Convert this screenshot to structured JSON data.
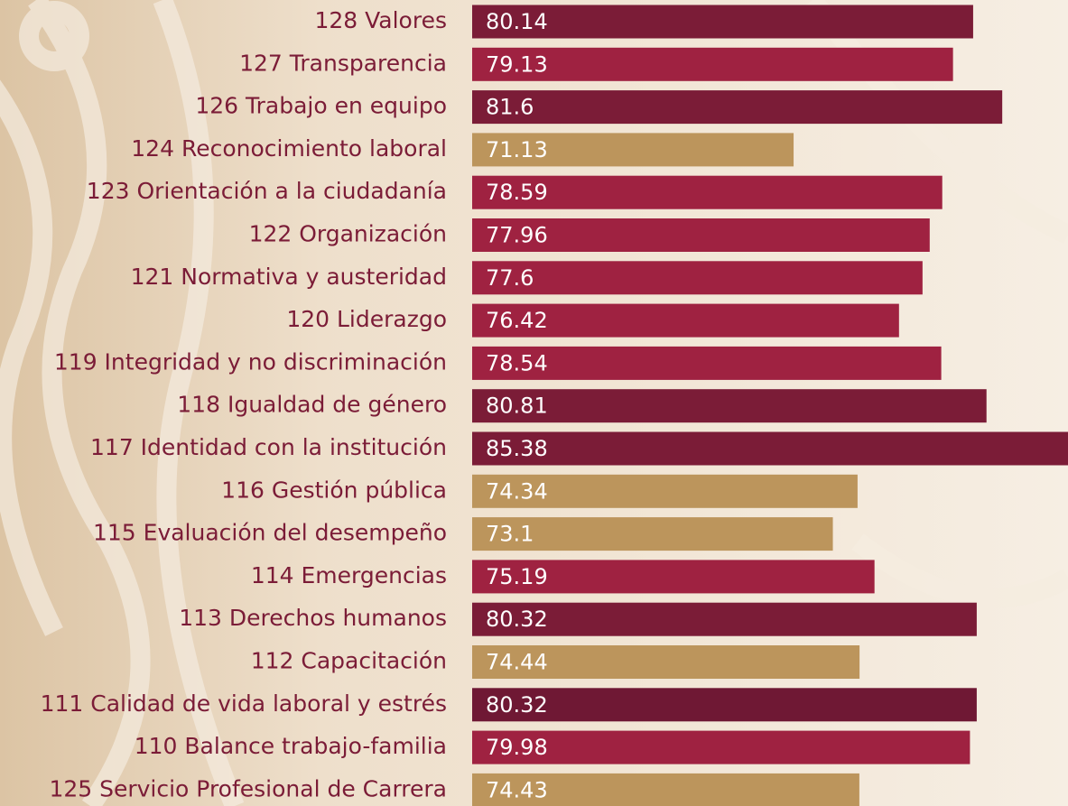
{
  "chart_data": {
    "type": "bar",
    "horizontal": true,
    "categories": [
      "128 Valores",
      "127 Transparencia",
      "126 Trabajo en equipo",
      "124 Reconocimiento laboral",
      "123 Orientación a la ciudadanía",
      "122 Organización",
      "121 Normativa y austeridad",
      "120 Liderazgo",
      "119 Integridad y no discriminación",
      "118 Igualdad de género",
      "117 Identidad con la institución",
      "116 Gestión pública",
      "115 Evaluación del desempeño",
      "114 Emergencias",
      "113 Derechos humanos",
      "112 Capacitación",
      "111 Calidad de vida laboral y estrés",
      "110 Balance trabajo-familia",
      "125 Servicio Profesional de Carrera"
    ],
    "values": [
      80.14,
      79.13,
      81.6,
      71.13,
      78.59,
      77.96,
      77.6,
      76.42,
      78.54,
      80.81,
      85.38,
      74.34,
      73.1,
      75.19,
      80.32,
      74.44,
      80.32,
      79.98,
      74.43
    ],
    "colors": [
      "#7b1c37",
      "#9f2241",
      "#7b1c37",
      "#bc955c",
      "#9f2241",
      "#9f2241",
      "#9f2241",
      "#9f2241",
      "#9f2241",
      "#7b1c37",
      "#7b1c37",
      "#bc955c",
      "#bc955c",
      "#9f2241",
      "#7b1c37",
      "#bc955c",
      "#6f1834",
      "#9f2241",
      "#bc955c"
    ],
    "xlim": [
      55,
      84.9
    ]
  }
}
